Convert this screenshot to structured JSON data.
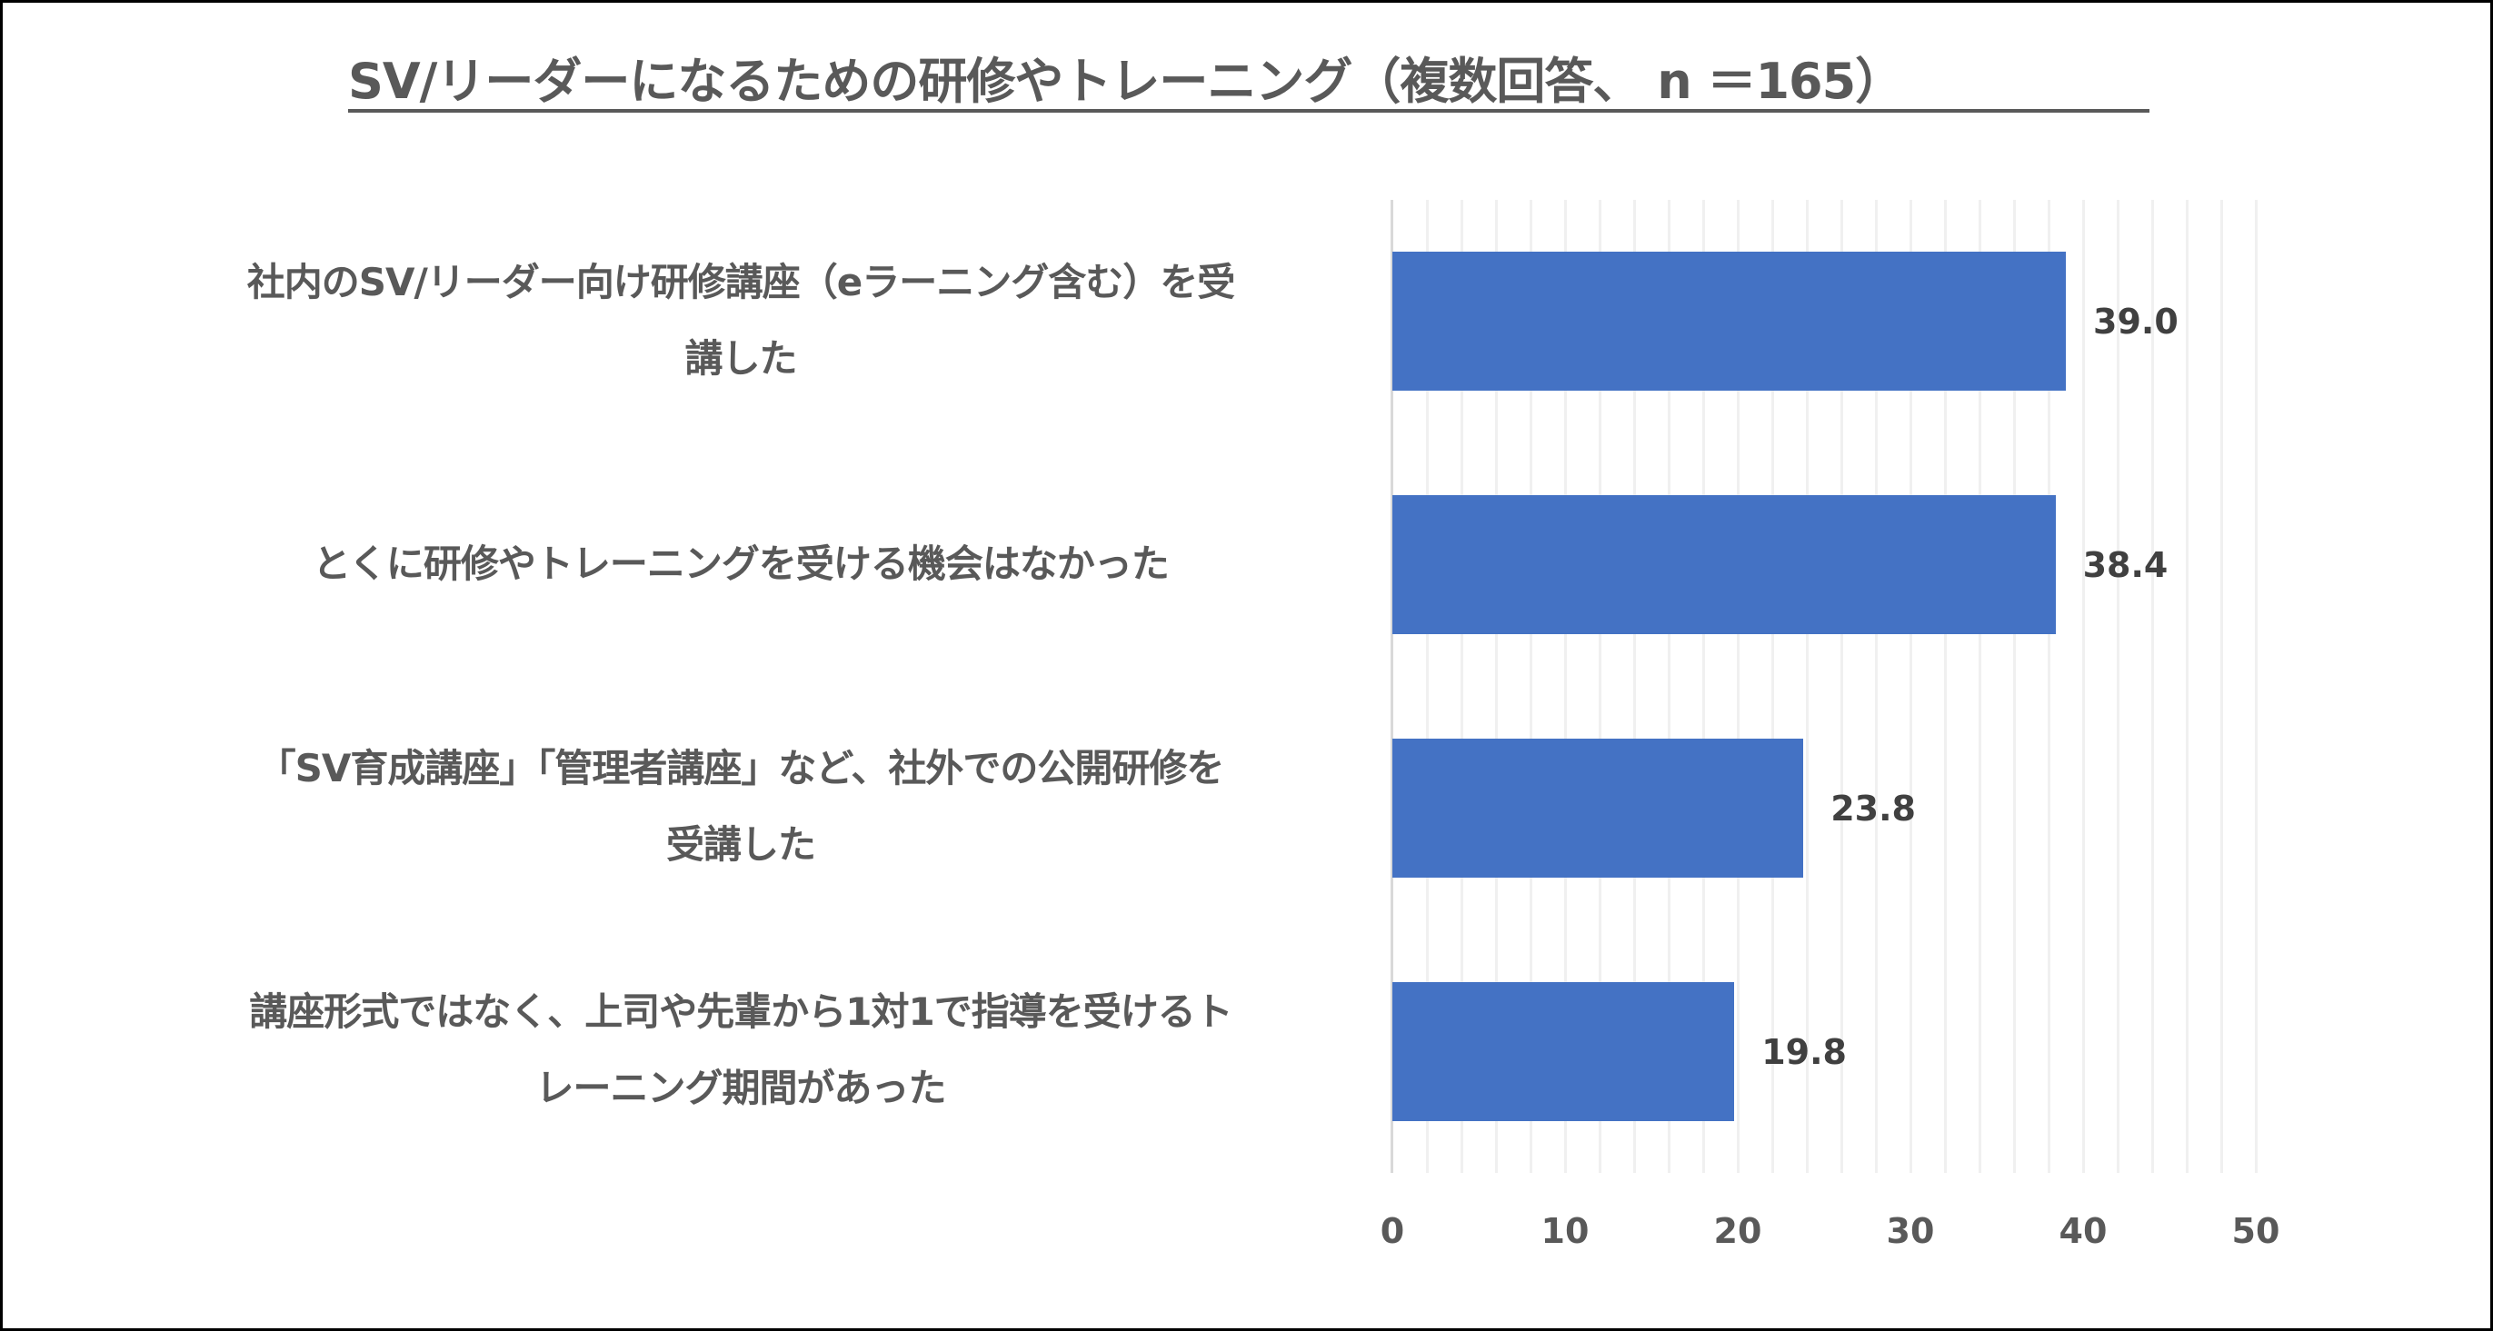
{
  "title": "SV/リーダーになるための研修やトレーニング（複数回答、 n ＝165）",
  "colors": {
    "bar": "#4472c4",
    "title_text": "#595959",
    "label_text": "#595959",
    "value_text": "#404040",
    "gridline": "#f0f0f0",
    "axis_line": "#d9d9d9",
    "border": "#000000"
  },
  "categories": [
    {
      "line1": "社内のSV/リーダー向け研修講座（eラーニング含む）を受",
      "line2": "講した",
      "value": 39.0,
      "value_label": "39.0"
    },
    {
      "line1": "とくに研修やトレーニングを受ける機会はなかった",
      "line2": "",
      "value": 38.4,
      "value_label": "38.4"
    },
    {
      "line1": "「SV育成講座」「管理者講座」など、社外での公開研修を",
      "line2": "受講した",
      "value": 23.8,
      "value_label": "23.8"
    },
    {
      "line1": "講座形式ではなく、上司や先輩から1対1で指導を受けるト",
      "line2": "レーニング期間があった",
      "value": 19.8,
      "value_label": "19.8"
    }
  ],
  "x_axis": {
    "ticks": [
      "0",
      "10",
      "20",
      "30",
      "40",
      "50"
    ]
  },
  "chart_data": {
    "type": "bar",
    "orientation": "horizontal",
    "title": "SV/リーダーになるための研修やトレーニング（複数回答、 n ＝165）",
    "categories": [
      "社内のSV/リーダー向け研修講座（eラーニング含む）を受講した",
      "とくに研修やトレーニングを受ける機会はなかった",
      "「SV育成講座」「管理者講座」など、社外での公開研修を受講した",
      "講座形式ではなく、上司や先輩から1対1で指導を受けるトレーニング期間があった"
    ],
    "values": [
      39.0,
      38.4,
      23.8,
      19.8
    ],
    "xlabel": "",
    "ylabel": "",
    "xlim": [
      0,
      50
    ],
    "x_ticks": [
      0,
      10,
      20,
      30,
      40,
      50
    ],
    "grid": "vertical minor gridlines every 2 units",
    "legend": "none",
    "data_labels": true
  }
}
